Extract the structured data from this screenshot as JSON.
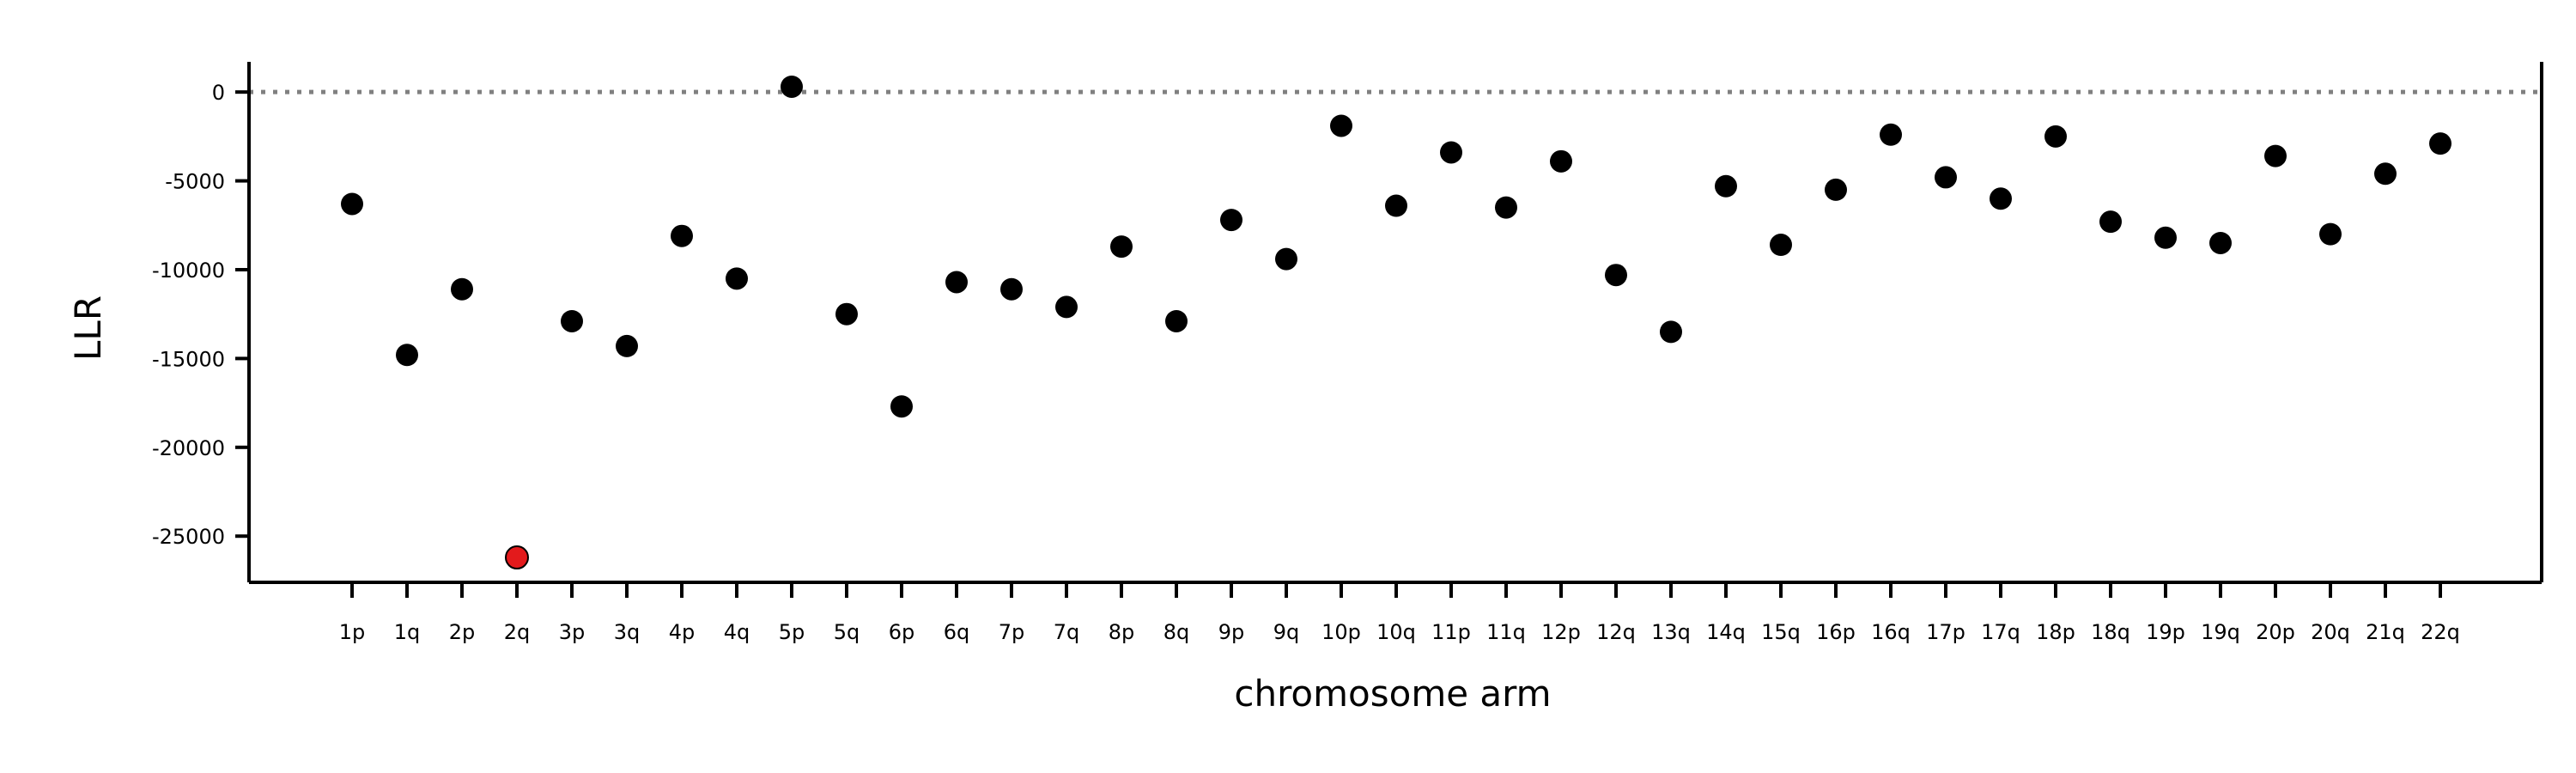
{
  "chart_data": {
    "type": "scatter",
    "title": "",
    "xlabel": "chromosome arm",
    "ylabel": "LLR",
    "ylim": [
      -27600,
      1700
    ],
    "yticks": [
      0,
      -5000,
      -10000,
      -15000,
      -20000,
      -25000
    ],
    "grid": false,
    "reference_line": {
      "y": 0,
      "style": "dotted",
      "color": "#808080"
    },
    "categories": [
      "1p",
      "1q",
      "2p",
      "2q",
      "3p",
      "3q",
      "4p",
      "4q",
      "5p",
      "5q",
      "6p",
      "6q",
      "7p",
      "7q",
      "8p",
      "8q",
      "9p",
      "9q",
      "10p",
      "10q",
      "11p",
      "11q",
      "12p",
      "12q",
      "13q",
      "14q",
      "15q",
      "16p",
      "16q",
      "17p",
      "17q",
      "18p",
      "18q",
      "19p",
      "19q",
      "20p",
      "20q",
      "21q",
      "22q"
    ],
    "values": [
      -6300,
      -14800,
      -11100,
      -26200,
      -12900,
      -14300,
      -8100,
      -10500,
      300,
      -12500,
      -17700,
      -10700,
      -11100,
      -12100,
      -8700,
      -12900,
      -7200,
      -9400,
      -1900,
      -6400,
      -3400,
      -6500,
      -3900,
      -10300,
      -13500,
      -5300,
      -8600,
      -5500,
      -2400,
      -4800,
      -6000,
      -2500,
      -7300,
      -8200,
      -8500,
      -3600,
      -8000,
      -4600,
      -2900
    ],
    "highlight": {
      "category": "2q",
      "color": "#e31a1c"
    },
    "point_color": "#000000"
  }
}
